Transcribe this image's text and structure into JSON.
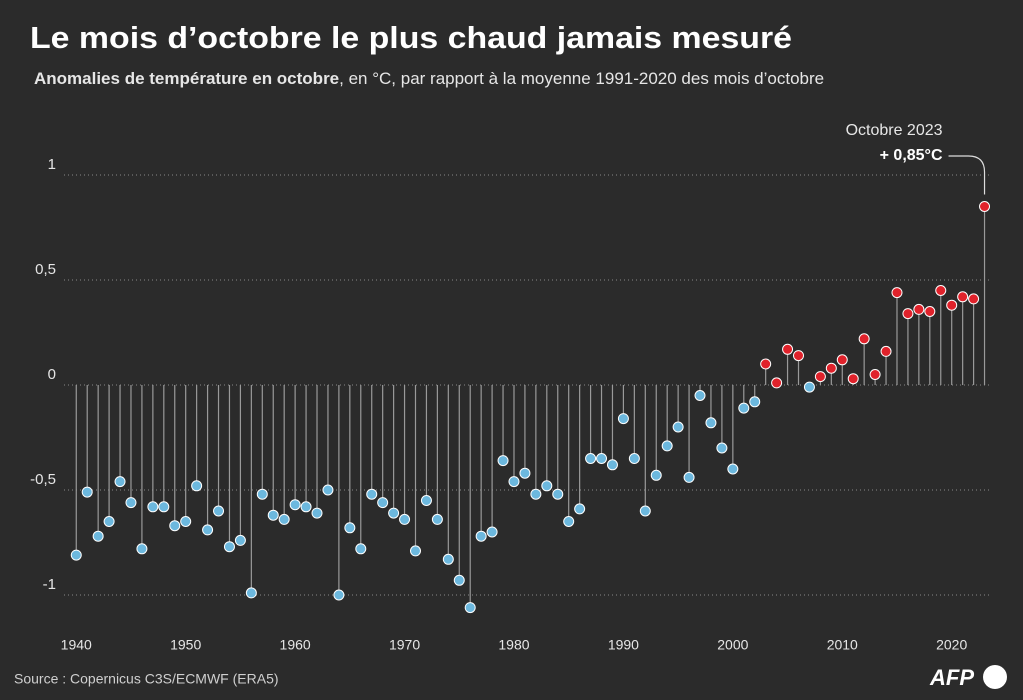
{
  "chart_data": {
    "type": "lollipop",
    "title": "Le mois d’octobre le plus chaud jamais mesuré",
    "subtitle_bold": "Anomalies de température en octobre",
    "subtitle": ", en °C, par rapport à la moyenne 1991-2020 des mois d’octobre",
    "source": "Source : Copernicus C3S/ECMWF (ERA5)",
    "logo": "AFP",
    "annotation": {
      "title": "Octobre 2023",
      "label": "+ 0,85°C"
    },
    "x": [
      1940,
      1941,
      1942,
      1943,
      1944,
      1945,
      1946,
      1947,
      1948,
      1949,
      1950,
      1951,
      1952,
      1953,
      1954,
      1955,
      1956,
      1957,
      1958,
      1959,
      1960,
      1961,
      1962,
      1963,
      1964,
      1965,
      1966,
      1967,
      1968,
      1969,
      1970,
      1971,
      1972,
      1973,
      1974,
      1975,
      1976,
      1977,
      1978,
      1979,
      1980,
      1981,
      1982,
      1983,
      1984,
      1985,
      1986,
      1987,
      1988,
      1989,
      1990,
      1991,
      1992,
      1993,
      1994,
      1995,
      1996,
      1997,
      1998,
      1999,
      2000,
      2001,
      2002,
      2003,
      2004,
      2005,
      2006,
      2007,
      2008,
      2009,
      2010,
      2011,
      2012,
      2013,
      2014,
      2015,
      2016,
      2017,
      2018,
      2019,
      2020,
      2021,
      2022,
      2023
    ],
    "values": [
      -0.81,
      -0.51,
      -0.72,
      -0.65,
      -0.46,
      -0.56,
      -0.78,
      -0.58,
      -0.58,
      -0.67,
      -0.65,
      -0.48,
      -0.69,
      -0.6,
      -0.77,
      -0.74,
      -0.99,
      -0.52,
      -0.62,
      -0.64,
      -0.57,
      -0.58,
      -0.61,
      -0.5,
      -1.0,
      -0.68,
      -0.78,
      -0.52,
      -0.56,
      -0.61,
      -0.64,
      -0.79,
      -0.55,
      -0.64,
      -0.83,
      -0.93,
      -1.06,
      -0.72,
      -0.7,
      -0.36,
      -0.46,
      -0.42,
      -0.52,
      -0.48,
      -0.52,
      -0.65,
      -0.59,
      -0.35,
      -0.35,
      -0.38,
      -0.16,
      -0.35,
      -0.6,
      -0.43,
      -0.29,
      -0.2,
      -0.44,
      -0.05,
      -0.18,
      -0.3,
      -0.4,
      -0.11,
      -0.08,
      0.1,
      0.01,
      0.17,
      0.14,
      -0.01,
      0.04,
      0.08,
      0.12,
      0.03,
      0.22,
      0.05,
      0.16,
      0.44,
      0.34,
      0.36,
      0.35,
      0.45,
      0.38,
      0.42,
      0.41,
      0.85
    ],
    "negative_color": "#6cb8de",
    "positive_color": "#e0222b",
    "stem_color": "#9a9a9a",
    "xlim": [
      1937.6,
      2023.5
    ],
    "xticks": [
      1940,
      1950,
      1960,
      1970,
      1980,
      1990,
      2000,
      2010,
      2020
    ],
    "ylim": [
      -1.1,
      1.25
    ],
    "yticks": [
      -1,
      {
        "value": -0.5,
        "label": "-0,5"
      },
      0,
      {
        "value": 0.5,
        "label": "0,5"
      },
      1
    ],
    "grid": true
  }
}
